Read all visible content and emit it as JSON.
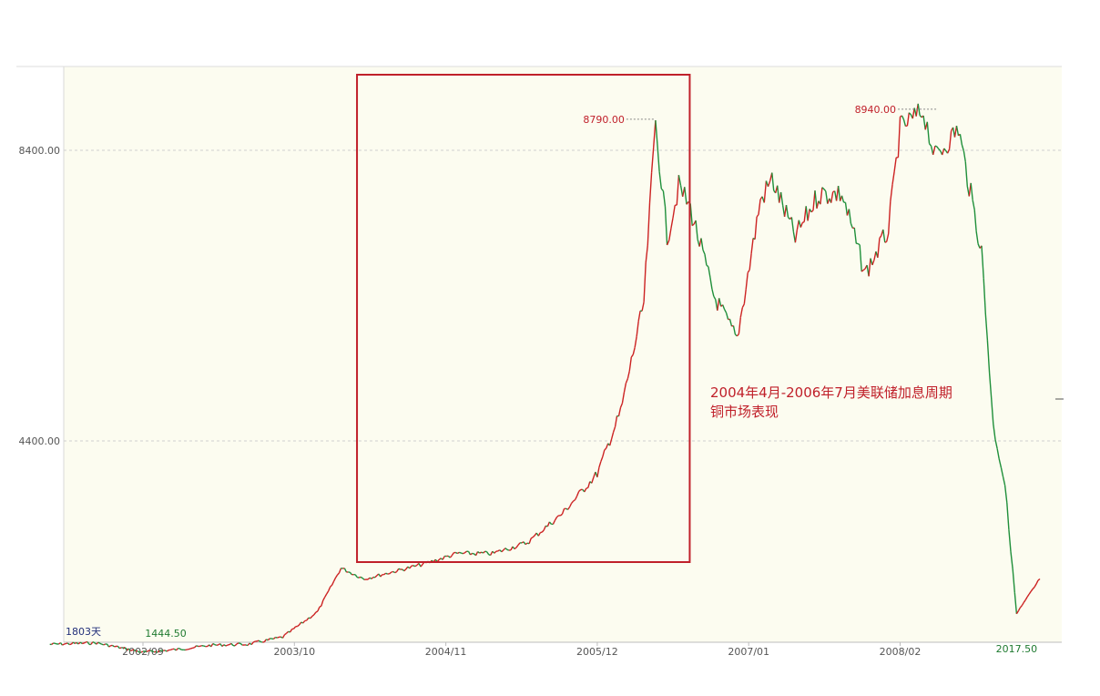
{
  "chart_data": {
    "type": "line",
    "title": "",
    "xlabel": "",
    "ylabel": "",
    "ylim": [
      0,
      9500
    ],
    "y_ticks": [
      {
        "value": 4400,
        "label": "4400.00"
      },
      {
        "value": 8400,
        "label": "8400.00"
      }
    ],
    "x_ticks": [
      "2002/09",
      "2003/10",
      "2004/11",
      "2005/12",
      "2007/01",
      "2008/02"
    ],
    "grid": true,
    "series": [
      {
        "name": "",
        "x": [
          "2002/01",
          "2002/05",
          "2002/09",
          "2002/12",
          "2003/03",
          "2003/06",
          "2003/09",
          "2003/12",
          "2004/02",
          "2004/04",
          "2004/06",
          "2004/09",
          "2004/12",
          "2005/03",
          "2005/06",
          "2005/09",
          "2005/12",
          "2006/02",
          "2006/04",
          "2006/05",
          "2006/06",
          "2006/07",
          "2006/08",
          "2006/10",
          "2006/12",
          "2007/02",
          "2007/03",
          "2007/05",
          "2007/07",
          "2007/09",
          "2007/11",
          "2008/01",
          "2008/02",
          "2008/04",
          "2008/05",
          "2008/07",
          "2008/09",
          "2008/10",
          "2008/11",
          "2008/12",
          "2009/02"
        ],
        "y": [
          1600,
          1620,
          1490,
          1530,
          1590,
          1600,
          1700,
          2050,
          2650,
          2500,
          2580,
          2700,
          2850,
          2850,
          3000,
          3400,
          3950,
          4800,
          6300,
          8790,
          7200,
          7900,
          7600,
          6400,
          5800,
          7700,
          8000,
          7200,
          7800,
          7800,
          6700,
          7300,
          8700,
          8940,
          8300,
          8700,
          7000,
          4600,
          3800,
          2017.5,
          2500
        ]
      }
    ],
    "annotations": {
      "peak_2006": "8790.00",
      "peak_2008": "8940.00",
      "low_2002": "1444.50",
      "low_2008": "2017.50",
      "corner_label": "1803天",
      "note_line1": "2004年4月-2006年7月美联储加息周期",
      "note_line2": "铜市场表现"
    },
    "highlight_range": [
      "2004/04",
      "2006/07"
    ],
    "colors": {
      "background": "#fcfcf0",
      "up": "#cc2222",
      "down": "#1f8f3a",
      "highlight_box": "#c0202a",
      "grid": "#cfcfcf",
      "low_label_2008": "#1f7a30",
      "low_label_2002": "#1f7a30",
      "corner_label": "#23307a"
    }
  }
}
